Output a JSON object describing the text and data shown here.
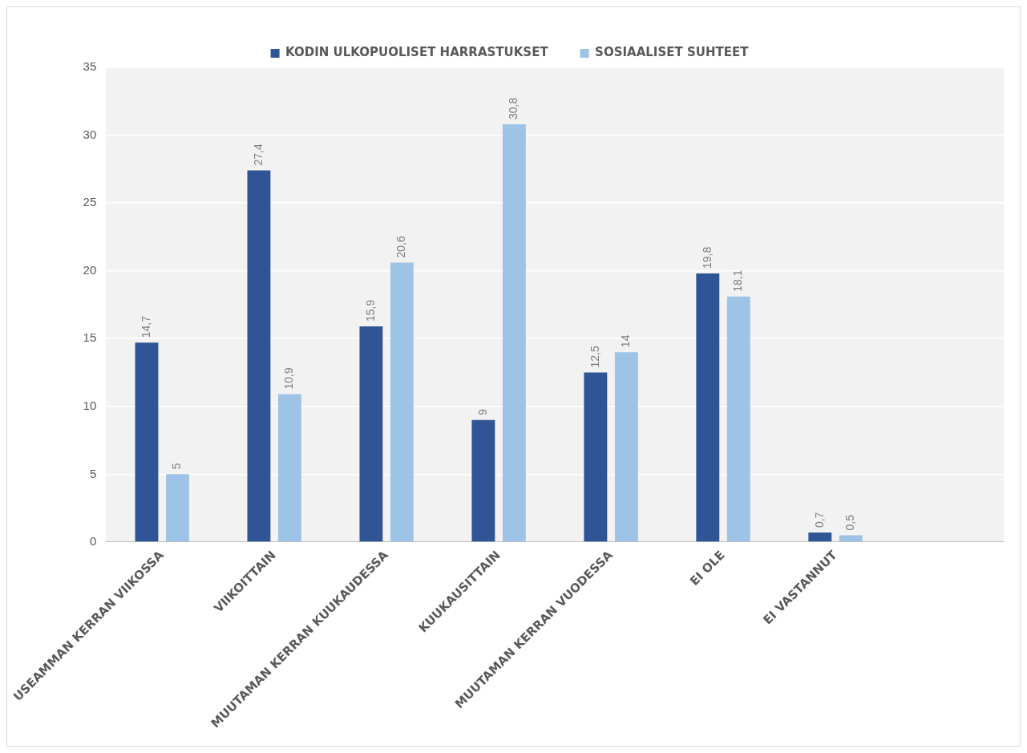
{
  "chart_data": {
    "type": "bar",
    "categories": [
      "USEAMMAN KERRAN VIIKOSSA",
      "VIIKOITTAIN",
      "MUUTAMAN KERRAN KUUKAUDESSA",
      "KUUKAUSITTAIN",
      "MUUTAMAN KERRAN VUODESSA",
      "EI OLE",
      "EI VASTANNUT",
      null
    ],
    "series": [
      {
        "name": "KODIN ULKOPUOLISET HARRASTUKSET",
        "color": "#2f5597",
        "values": [
          14.7,
          27.4,
          15.9,
          9,
          12.5,
          19.8,
          0.7,
          null
        ],
        "value_labels": [
          "14,7",
          "27,4",
          "15,9",
          "9",
          "12,5",
          "19,8",
          "0,7",
          null
        ]
      },
      {
        "name": "SOSIAALISET SUHTEET",
        "color": "#9dc3e6",
        "values": [
          5,
          10.9,
          20.6,
          30.8,
          14,
          18.1,
          0.5,
          null
        ],
        "value_labels": [
          "5",
          "10,9",
          "20,6",
          "30,8",
          "14",
          "18,1",
          "0,5",
          null
        ]
      }
    ],
    "ylim": [
      0,
      35
    ],
    "yticks": [
      0,
      5,
      10,
      15,
      20,
      25,
      30,
      35
    ],
    "grid": "y",
    "legend": "top"
  }
}
